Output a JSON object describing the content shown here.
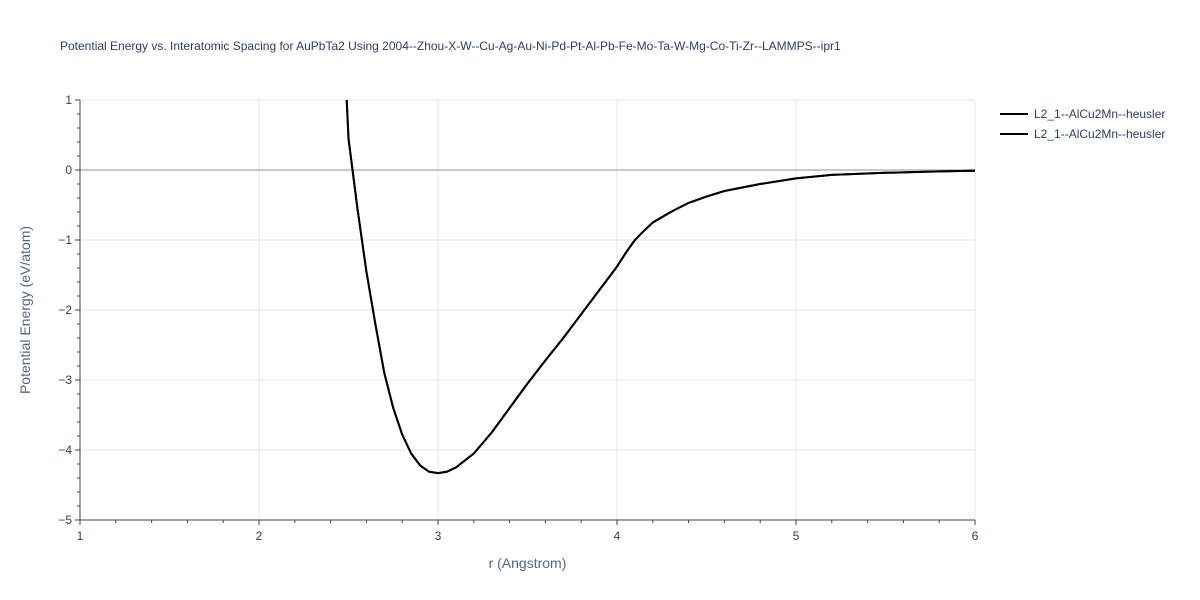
{
  "chart_data": {
    "type": "line",
    "title": "Potential Energy vs. Interatomic Spacing for AuPbTa2 Using 2004--Zhou-X-W--Cu-Ag-Au-Ni-Pd-Pt-Al-Pb-Fe-Mo-Ta-W-Mg-Co-Ti-Zr--LAMMPS--ipr1",
    "xlabel": "r (Angstrom)",
    "ylabel": "Potential Energy (eV/atom)",
    "xlim": [
      1,
      6
    ],
    "ylim": [
      -5,
      1
    ],
    "xticks": [
      "1",
      "2",
      "3",
      "4",
      "5",
      "6"
    ],
    "yticks": [
      "1",
      "0",
      "−1",
      "−2",
      "−3",
      "−4",
      "−5"
    ],
    "legend_position": "top-right",
    "grid": true,
    "series": [
      {
        "name": "L2_1--AlCu2Mn--heusler",
        "color": "#000000",
        "x": [
          2.49,
          2.5,
          2.55,
          2.6,
          2.65,
          2.7,
          2.75,
          2.8,
          2.85,
          2.9,
          2.95,
          3.0,
          3.05,
          3.1,
          3.15,
          3.2,
          3.3,
          3.4,
          3.5,
          3.6,
          3.7,
          3.8,
          3.9,
          3.95,
          4.0,
          4.05,
          4.1,
          4.15,
          4.2,
          4.3,
          4.4,
          4.5,
          4.6,
          4.8,
          5.0,
          5.2,
          5.5,
          5.8,
          6.0
        ],
        "y": [
          1.0,
          0.45,
          -0.55,
          -1.45,
          -2.2,
          -2.9,
          -3.4,
          -3.78,
          -4.05,
          -4.22,
          -4.31,
          -4.33,
          -4.31,
          -4.25,
          -4.15,
          -4.05,
          -3.75,
          -3.4,
          -3.05,
          -2.72,
          -2.4,
          -2.06,
          -1.72,
          -1.55,
          -1.38,
          -1.18,
          -1.0,
          -0.87,
          -0.75,
          -0.6,
          -0.47,
          -0.38,
          -0.3,
          -0.2,
          -0.12,
          -0.07,
          -0.04,
          -0.02,
          -0.01
        ]
      },
      {
        "name": "L2_1--AlCu2Mn--heusler",
        "color": "#000000",
        "x": [
          2.49,
          2.5,
          2.55,
          2.6,
          2.65,
          2.7,
          2.75,
          2.8,
          2.85,
          2.9,
          2.95,
          3.0,
          3.05,
          3.1,
          3.15,
          3.2,
          3.3,
          3.4,
          3.5,
          3.6,
          3.7,
          3.8,
          3.9,
          3.95,
          4.0,
          4.05,
          4.1,
          4.15,
          4.2,
          4.3,
          4.4,
          4.5,
          4.6,
          4.8,
          5.0,
          5.2,
          5.5,
          5.8,
          6.0
        ],
        "y": [
          1.0,
          0.45,
          -0.55,
          -1.45,
          -2.2,
          -2.9,
          -3.4,
          -3.78,
          -4.05,
          -4.22,
          -4.31,
          -4.33,
          -4.31,
          -4.25,
          -4.15,
          -4.05,
          -3.75,
          -3.4,
          -3.05,
          -2.72,
          -2.4,
          -2.06,
          -1.72,
          -1.55,
          -1.38,
          -1.18,
          -1.0,
          -0.87,
          -0.75,
          -0.6,
          -0.47,
          -0.38,
          -0.3,
          -0.2,
          -0.12,
          -0.07,
          -0.04,
          -0.02,
          -0.01
        ]
      }
    ]
  }
}
